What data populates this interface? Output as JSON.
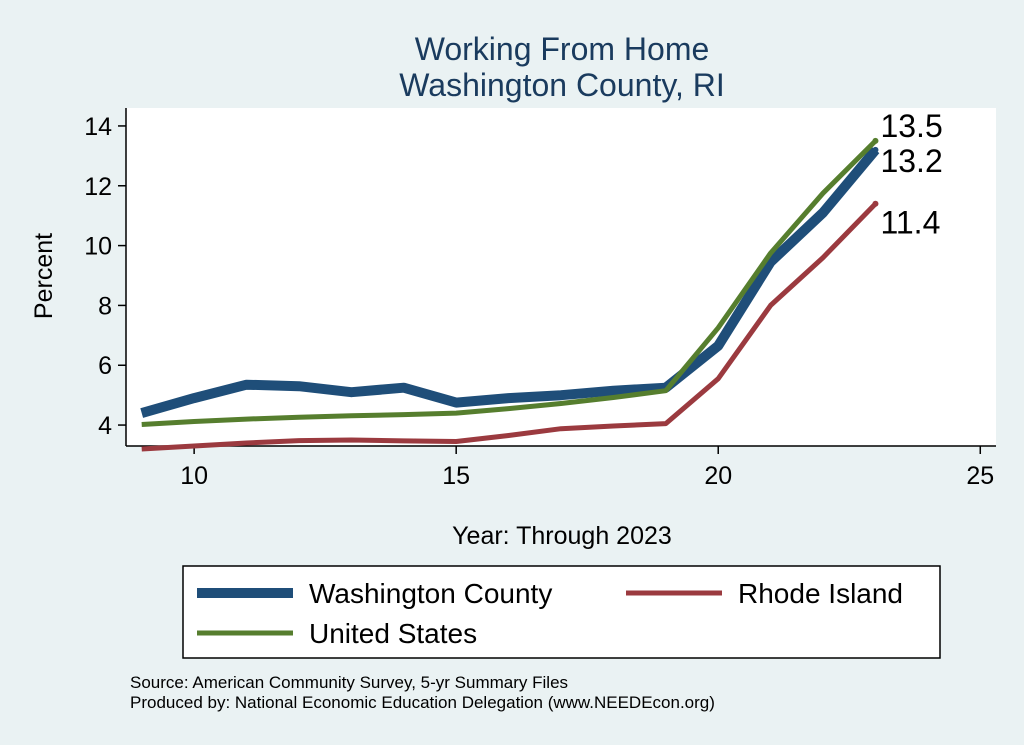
{
  "chart_data": {
    "type": "line",
    "title": [
      "Working From Home",
      "Washington County, RI"
    ],
    "xlabel": "Year: Through 2023",
    "ylabel": "Percent",
    "xlim": [
      8.7,
      25.3
    ],
    "ylim": [
      3.3,
      14.6
    ],
    "xticks": [
      10,
      15,
      20,
      25
    ],
    "yticks": [
      4,
      6,
      8,
      10,
      12,
      14
    ],
    "grid": true,
    "legend_position": "bottom",
    "x": [
      9,
      10,
      11,
      12,
      13,
      14,
      15,
      16,
      17,
      18,
      19,
      20,
      21,
      22,
      23
    ],
    "series": [
      {
        "name": "Washington County",
        "color": "#1f4e79",
        "width": 10,
        "values": [
          4.4,
          4.9,
          5.35,
          5.3,
          5.1,
          5.25,
          4.75,
          4.9,
          5.0,
          5.15,
          5.25,
          6.65,
          9.45,
          11.1,
          13.2
        ],
        "end_label": "13.2"
      },
      {
        "name": "Rhode Island",
        "color": "#9b3a3f",
        "width": 5,
        "values": [
          3.2,
          3.3,
          3.4,
          3.48,
          3.5,
          3.47,
          3.45,
          3.65,
          3.88,
          3.97,
          4.05,
          5.55,
          8.0,
          9.6,
          11.4
        ],
        "end_label": "11.4"
      },
      {
        "name": "United States",
        "color": "#567e2e",
        "width": 5,
        "values": [
          4.02,
          4.12,
          4.2,
          4.26,
          4.31,
          4.35,
          4.4,
          4.55,
          4.72,
          4.92,
          5.15,
          7.25,
          9.75,
          11.75,
          13.5
        ],
        "end_label": "13.5"
      }
    ],
    "notes": [
      "Source: American Community Survey, 5-yr Summary Files",
      "Produced by: National Economic Education Delegation (www.NEEDEcon.org)"
    ]
  }
}
